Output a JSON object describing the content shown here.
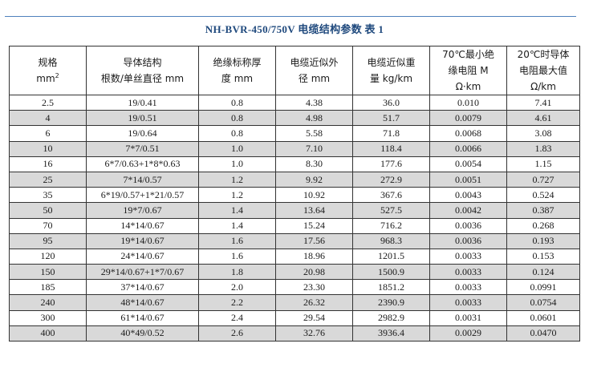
{
  "title": "NH-BVR-450/750V   电缆结构参数   表 1",
  "headers": [
    {
      "line1": "规格",
      "line2": "mm",
      "sup": "2"
    },
    {
      "line1": "导体结构",
      "line2": "根数/单丝直径  mm"
    },
    {
      "line1": "绝缘标称厚",
      "line2": "度 mm"
    },
    {
      "line1": "电缆近似外",
      "line2": "径 mm"
    },
    {
      "line1": "电缆近似重",
      "line2": "量 kg/km"
    },
    {
      "line1": "70℃最小绝",
      "line2": "缘电阻 M",
      "line3": "Ω·km"
    },
    {
      "line1": "20℃时导体",
      "line2": "电阻最大值",
      "line3": "Ω/km"
    }
  ],
  "rows": [
    [
      "2.5",
      "19/0.41",
      "0.8",
      "4.38",
      "36.0",
      "0.010",
      "7.41"
    ],
    [
      "4",
      "19/0.51",
      "0.8",
      "4.98",
      "51.7",
      "0.0079",
      "4.61"
    ],
    [
      "6",
      "19/0.64",
      "0.8",
      "5.58",
      "71.8",
      "0.0068",
      "3.08"
    ],
    [
      "10",
      "7*7/0.51",
      "1.0",
      "7.10",
      "118.4",
      "0.0066",
      "1.83"
    ],
    [
      "16",
      "6*7/0.63+1*8*0.63",
      "1.0",
      "8.30",
      "177.6",
      "0.0054",
      "1.15"
    ],
    [
      "25",
      "7*14/0.57",
      "1.2",
      "9.92",
      "272.9",
      "0.0051",
      "0.727"
    ],
    [
      "35",
      "6*19/0.57+1*21/0.57",
      "1.2",
      "10.92",
      "367.6",
      "0.0043",
      "0.524"
    ],
    [
      "50",
      "19*7/0.67",
      "1.4",
      "13.64",
      "527.5",
      "0.0042",
      "0.387"
    ],
    [
      "70",
      "14*14/0.67",
      "1.4",
      "15.24",
      "716.2",
      "0.0036",
      "0.268"
    ],
    [
      "95",
      "19*14/0.67",
      "1.6",
      "17.56",
      "968.3",
      "0.0036",
      "0.193"
    ],
    [
      "120",
      "24*14/0.67",
      "1.6",
      "18.96",
      "1201.5",
      "0.0033",
      "0.153"
    ],
    [
      "150",
      "29*14/0.67+1*7/0.67",
      "1.8",
      "20.98",
      "1500.9",
      "0.0033",
      "0.124"
    ],
    [
      "185",
      "37*14/0.67",
      "2.0",
      "23.30",
      "1851.2",
      "0.0033",
      "0.0991"
    ],
    [
      "240",
      "48*14/0.67",
      "2.2",
      "26.32",
      "2390.9",
      "0.0033",
      "0.0754"
    ],
    [
      "300",
      "61*14/0.67",
      "2.4",
      "29.54",
      "2982.9",
      "0.0031",
      "0.0601"
    ],
    [
      "400",
      "40*49/0.52",
      "2.6",
      "32.76",
      "3936.4",
      "0.0029",
      "0.0470"
    ]
  ],
  "colors": {
    "title": "#1f497d",
    "rule": "#4f81bd",
    "shade": "#d9d9d9"
  }
}
